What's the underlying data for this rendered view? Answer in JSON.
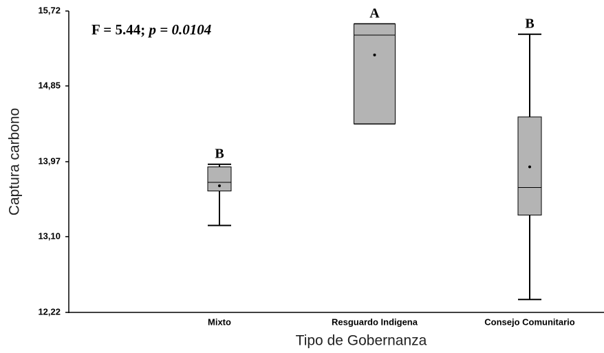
{
  "chart_data": {
    "type": "box",
    "annotation": {
      "stat": "F = 5.44;",
      "p_symbol": "p",
      "p_value": "= 0.0104"
    },
    "x_label": "Tipo de Gobernanza",
    "y_label": "Captura carbono",
    "categories": [
      "Mixto",
      "Resguardo Indigena",
      "Consejo Comunitario"
    ],
    "group_letters": [
      "B",
      "A",
      "B"
    ],
    "color": "#b4b4b4",
    "boxes": [
      {
        "min": 13.23,
        "q1": 13.63,
        "median": 13.73,
        "q3": 13.91,
        "max": 13.94,
        "mean": 13.69
      },
      {
        "min": 14.41,
        "q1": 14.41,
        "median": 15.44,
        "q3": 15.57,
        "max": 15.57,
        "mean": 15.21
      },
      {
        "min": 12.37,
        "q1": 13.35,
        "median": 13.67,
        "q3": 14.49,
        "max": 15.45,
        "mean": 13.91
      }
    ],
    "ylim": [
      12.22,
      15.72
    ],
    "yticks": [
      {
        "value": 12.22,
        "label": "12,22"
      },
      {
        "value": 13.1,
        "label": "13,10"
      },
      {
        "value": 13.97,
        "label": "13,97"
      },
      {
        "value": 14.85,
        "label": "14,85"
      },
      {
        "value": 15.72,
        "label": "15,72"
      }
    ]
  }
}
